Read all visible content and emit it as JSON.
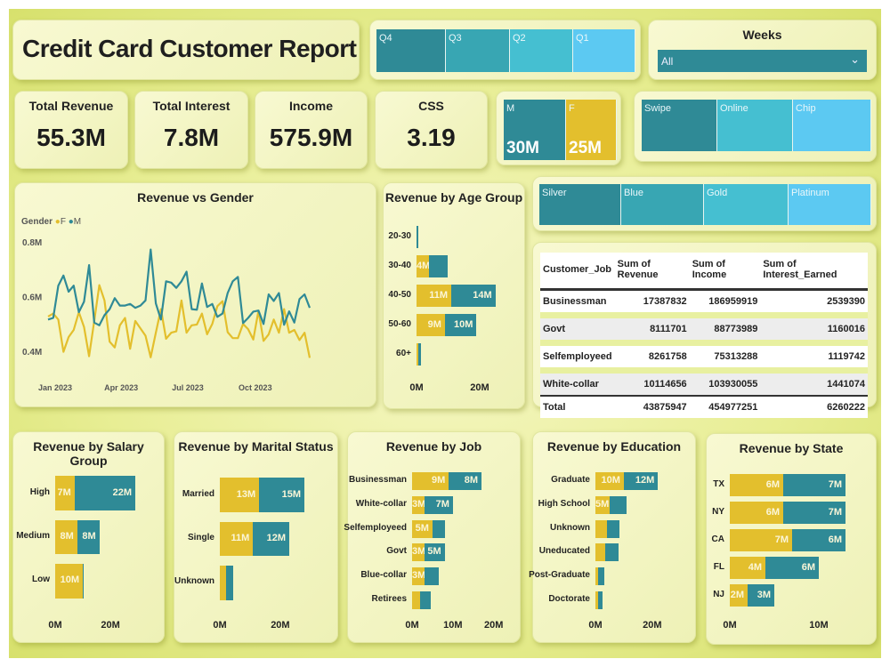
{
  "header": {
    "title": "Credit Card Customer Report"
  },
  "colors": {
    "F": "#e3bf2d",
    "M": "#2f8a96",
    "tile_dark": "#2f8a96",
    "tile_mid": "#38a6b3",
    "tile_light": "#45bfd1",
    "tile_sky": "#5cc9f2"
  },
  "quarter_slicer": {
    "items": [
      "Q4",
      "Q3",
      "Q2",
      "Q1"
    ]
  },
  "weeks_slicer": {
    "title": "Weeks",
    "value": "All"
  },
  "kpis": [
    {
      "label": "Total Revenue",
      "value": "55.3M"
    },
    {
      "label": "Total Interest",
      "value": "7.8M"
    },
    {
      "label": "Income",
      "value": "575.9M"
    },
    {
      "label": "CSS",
      "value": "3.19"
    }
  ],
  "gender_tiles": [
    {
      "label": "M",
      "value": "30M"
    },
    {
      "label": "F",
      "value": "25M"
    }
  ],
  "card_type_slicer": {
    "items": [
      "Swipe",
      "Online",
      "Chip"
    ]
  },
  "card_category_slicer": {
    "items": [
      "Silver",
      "Blue",
      "Gold",
      "Platinum"
    ]
  },
  "table": {
    "columns": [
      "Customer_Job",
      "Sum of Revenue",
      "Sum of Income",
      "Sum of Interest_Earned"
    ],
    "rows": [
      [
        "Businessman",
        "17387832",
        "186959919",
        "2539390"
      ],
      [
        "Govt",
        "8111701",
        "88773989",
        "1160016"
      ],
      [
        "Selfemployeed",
        "8261758",
        "75313288",
        "1119742"
      ],
      [
        "White-collar",
        "10114656",
        "103930055",
        "1441074"
      ]
    ],
    "total": [
      "Total",
      "43875947",
      "454977251",
      "6260222"
    ]
  },
  "chart_data": [
    {
      "id": "gender_line",
      "type": "line",
      "title": "Revenue vs Gender",
      "legend_title": "Gender",
      "legend_position": "top-left",
      "ylim": [
        0.3,
        0.85
      ],
      "yticks": [
        "0.4M",
        "0.6M",
        "0.8M"
      ],
      "ytick_values": [
        0.4,
        0.6,
        0.8
      ],
      "xticks": [
        "Jan 2023",
        "Apr 2023",
        "Jul 2023",
        "Oct 2023"
      ],
      "xtick_dates": [
        "2023-01-01",
        "2023-04-01",
        "2023-07-01",
        "2023-10-01"
      ],
      "x": [
        "2023-01-01",
        "2023-01-08",
        "2023-01-15",
        "2023-01-22",
        "2023-01-29",
        "2023-02-05",
        "2023-02-12",
        "2023-02-19",
        "2023-02-26",
        "2023-03-05",
        "2023-03-12",
        "2023-03-19",
        "2023-03-26",
        "2023-04-02",
        "2023-04-09",
        "2023-04-16",
        "2023-04-23",
        "2023-04-30",
        "2023-05-07",
        "2023-05-14",
        "2023-05-21",
        "2023-05-28",
        "2023-06-04",
        "2023-06-11",
        "2023-06-18",
        "2023-06-25",
        "2023-07-02",
        "2023-07-09",
        "2023-07-16",
        "2023-07-23",
        "2023-07-30",
        "2023-08-06",
        "2023-08-13",
        "2023-08-20",
        "2023-08-27",
        "2023-09-03",
        "2023-09-10",
        "2023-09-17",
        "2023-09-24",
        "2023-10-01",
        "2023-10-08",
        "2023-10-15",
        "2023-10-22",
        "2023-10-29",
        "2023-11-05",
        "2023-11-12",
        "2023-11-19",
        "2023-11-26",
        "2023-12-03",
        "2023-12-10",
        "2023-12-17",
        "2023-12-24"
      ],
      "series": [
        {
          "name": "F",
          "values": [
            0.527,
            0.538,
            0.516,
            0.398,
            0.452,
            0.478,
            0.543,
            0.489,
            0.382,
            0.511,
            0.642,
            0.586,
            0.435,
            0.414,
            0.495,
            0.522,
            0.409,
            0.511,
            0.484,
            0.457,
            0.378,
            0.468,
            0.554,
            0.446,
            0.468,
            0.473,
            0.586,
            0.468,
            0.495,
            0.498,
            0.538,
            0.462,
            0.5,
            0.565,
            0.583,
            0.47,
            0.448,
            0.448,
            0.5,
            0.481,
            0.443,
            0.548,
            0.438,
            0.462,
            0.516,
            0.468,
            0.554,
            0.468,
            0.478,
            0.441,
            0.468,
            0.376
          ]
        },
        {
          "name": "M",
          "values": [
            0.516,
            0.522,
            0.64,
            0.677,
            0.618,
            0.64,
            0.543,
            0.581,
            0.715,
            0.505,
            0.495,
            0.532,
            0.554,
            0.594,
            0.567,
            0.567,
            0.573,
            0.559,
            0.567,
            0.586,
            0.772,
            0.575,
            0.516,
            0.656,
            0.651,
            0.632,
            0.656,
            0.691,
            0.554,
            0.552,
            0.648,
            0.562,
            0.573,
            0.526,
            0.538,
            0.613,
            0.656,
            0.672,
            0.503,
            0.522,
            0.545,
            0.549,
            0.5,
            0.608,
            0.584,
            0.613,
            0.497,
            0.546,
            0.505,
            0.591,
            0.608,
            0.559
          ]
        }
      ]
    },
    {
      "id": "age",
      "type": "bar",
      "title": "Revenue by Age Group",
      "xlim": [
        0,
        31
      ],
      "xticks": [
        "0M",
        "20M"
      ],
      "xtick_values": [
        0,
        20
      ],
      "categories": [
        "20-30",
        "30-40",
        "40-50",
        "50-60",
        "60+"
      ],
      "series": [
        {
          "name": "F",
          "values": [
            0.1,
            4,
            11,
            9,
            0.5
          ],
          "labels": [
            "",
            "4M",
            "11M",
            "9M",
            ""
          ]
        },
        {
          "name": "M",
          "values": [
            0.5,
            6,
            14,
            10,
            1
          ],
          "labels": [
            "",
            "",
            "14M",
            "10M",
            ""
          ]
        }
      ]
    },
    {
      "id": "salary",
      "type": "bar",
      "title": "Revenue by Salary Group",
      "xlim": [
        0,
        38
      ],
      "xticks": [
        "0M",
        "20M"
      ],
      "xtick_values": [
        0,
        20
      ],
      "categories": [
        "High",
        "Medium",
        "Low"
      ],
      "series": [
        {
          "name": "F",
          "values": [
            7,
            8,
            10
          ],
          "labels": [
            "7M",
            "8M",
            "10M"
          ]
        },
        {
          "name": "M",
          "values": [
            22,
            8,
            0.4
          ],
          "labels": [
            "22M",
            "8M",
            ""
          ]
        }
      ]
    },
    {
      "id": "marital",
      "type": "bar",
      "title": "Revenue by Marital Status",
      "xlim": [
        0,
        38
      ],
      "xticks": [
        "0M",
        "20M"
      ],
      "xtick_values": [
        0,
        20
      ],
      "categories": [
        "Married",
        "Single",
        "Unknown"
      ],
      "series": [
        {
          "name": "F",
          "values": [
            13,
            11,
            2
          ],
          "labels": [
            "13M",
            "11M",
            ""
          ]
        },
        {
          "name": "M",
          "values": [
            15,
            12,
            2.5
          ],
          "labels": [
            "15M",
            "12M",
            ""
          ]
        }
      ]
    },
    {
      "id": "job",
      "type": "bar",
      "title": "Revenue by Job",
      "xlim": [
        0,
        34
      ],
      "xticks": [
        "0M",
        "10M",
        "20M"
      ],
      "xtick_values": [
        0,
        10,
        20
      ],
      "categories": [
        "Businessman",
        "White-collar",
        "Selfemployeed",
        "Govt",
        "Blue-collar",
        "Retirees"
      ],
      "series": [
        {
          "name": "F",
          "values": [
            9,
            3,
            5,
            3,
            3,
            2
          ],
          "labels": [
            "9M",
            "3M",
            "5M",
            "3M",
            "3M",
            ""
          ]
        },
        {
          "name": "M",
          "values": [
            8,
            7,
            3,
            5,
            3.5,
            2.5
          ],
          "labels": [
            "8M",
            "7M",
            "",
            "5M",
            "",
            ""
          ]
        }
      ]
    },
    {
      "id": "education",
      "type": "bar",
      "title": "Revenue by Education",
      "xlim": [
        0,
        31
      ],
      "xticks": [
        "0M",
        "20M"
      ],
      "xtick_values": [
        0,
        20
      ],
      "categories": [
        "Graduate",
        "High School",
        "Unknown",
        "Uneducated",
        "Post-Graduate",
        "Doctorate"
      ],
      "series": [
        {
          "name": "F",
          "values": [
            10,
            5,
            4,
            3.5,
            1,
            1
          ],
          "labels": [
            "10M",
            "5M",
            "",
            "",
            "",
            ""
          ]
        },
        {
          "name": "M",
          "values": [
            12,
            6,
            4.5,
            4.5,
            2,
            1.5
          ],
          "labels": [
            "12M",
            "",
            "",
            "",
            "",
            ""
          ]
        }
      ]
    },
    {
      "id": "state",
      "type": "bar",
      "title": "Revenue by State",
      "xlim": [
        0,
        15
      ],
      "xticks": [
        "0M",
        "10M"
      ],
      "xtick_values": [
        0,
        10
      ],
      "categories": [
        "TX",
        "NY",
        "CA",
        "FL",
        "NJ"
      ],
      "series": [
        {
          "name": "F",
          "values": [
            6,
            6,
            7,
            4,
            2
          ],
          "labels": [
            "6M",
            "6M",
            "7M",
            "4M",
            "2M"
          ]
        },
        {
          "name": "M",
          "values": [
            7,
            7,
            6,
            6,
            3
          ],
          "labels": [
            "7M",
            "7M",
            "6M",
            "6M",
            "3M"
          ]
        }
      ]
    }
  ]
}
